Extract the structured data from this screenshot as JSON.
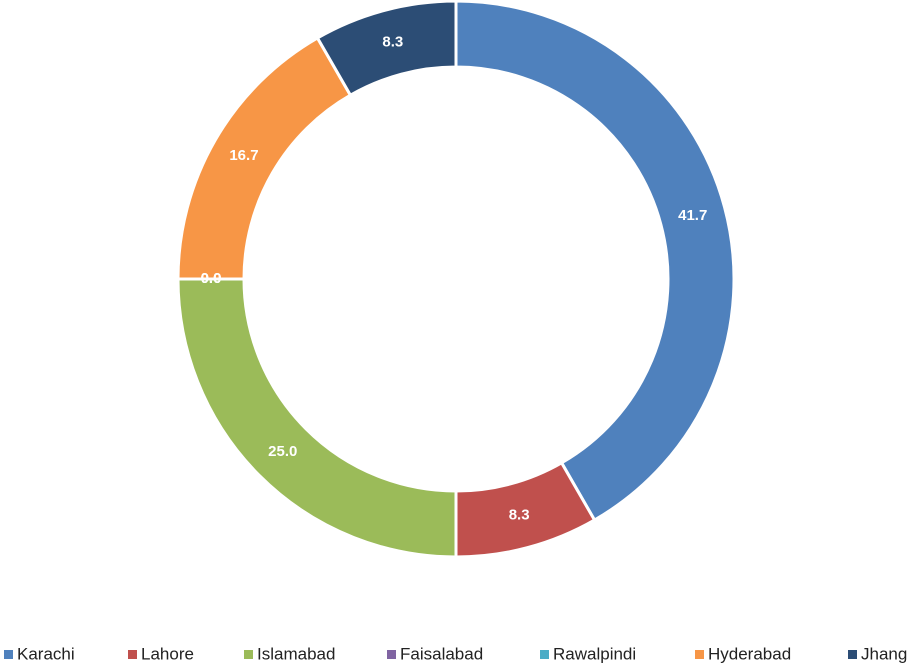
{
  "chart_data": {
    "type": "donut",
    "categories": [
      "Karachi",
      "Lahore",
      "Islamabad",
      "Faisalabad",
      "Rawalpindi",
      "Hyderabad",
      "Jhang"
    ],
    "values": [
      41.7,
      8.3,
      25.0,
      0.0,
      0.0,
      16.7,
      8.3
    ],
    "value_labels": [
      "41.7",
      "8.3",
      "25.0",
      "0.0",
      "0.0",
      "16.7",
      "8.3"
    ],
    "colors": [
      "#4f81bd",
      "#c0504d",
      "#9bbb59",
      "#8064a2",
      "#4bacc6",
      "#f79646",
      "#2c4d75"
    ],
    "legend": "bottom"
  }
}
